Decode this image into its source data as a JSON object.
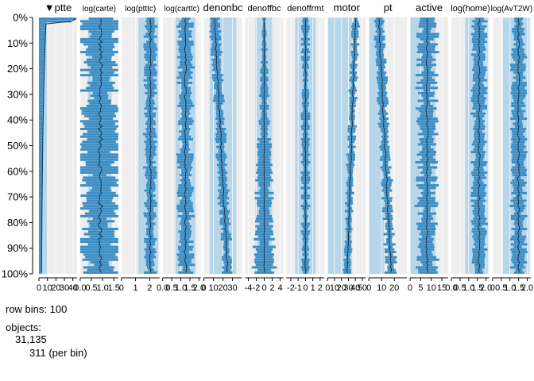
{
  "chart_data": {
    "type": "tableplot",
    "row_bins_text": "row bins: 100",
    "objects_label": "objects:",
    "objects_count": "31,135",
    "objects_per_bin": "311 (per bin)",
    "y_ticks": [
      "0%",
      "10%",
      "20%",
      "30%",
      "40%",
      "50%",
      "60%",
      "70%",
      "80%",
      "90%",
      "100%"
    ],
    "sort_indicator": "▼",
    "colors": {
      "bar": "#3f8fc4",
      "bar_dark": "#2a6f9e",
      "panel_bg": "#eeeeee",
      "band": "#b8d6ea",
      "median": "#1a3550",
      "grid": "#ffffff"
    },
    "columns": [
      {
        "name": "ptte",
        "sorted": true,
        "ticks": [
          {
            "v": 0,
            "l": "0"
          },
          {
            "v": 10,
            "l": "10"
          },
          {
            "v": 20,
            "l": "20"
          },
          {
            "v": 30,
            "l": "30"
          },
          {
            "v": 40,
            "l": "40"
          }
        ],
        "xlim": [
          0,
          45
        ],
        "profile": "sorted_desc",
        "band": [
          0,
          10
        ]
      },
      {
        "name": "log(carte)",
        "ticks": [
          {
            "v": 0,
            "l": "0.0"
          },
          {
            "v": 0.5,
            "l": "0.5"
          },
          {
            "v": 1.0,
            "l": "1.0"
          },
          {
            "v": 1.5,
            "l": "1.5"
          }
        ],
        "xlim": [
          0,
          1.7
        ],
        "profile": "flat_noisy",
        "mean": 0.9,
        "spread": 0.5,
        "band": [
          0.35,
          1.4
        ]
      },
      {
        "name": "log(ptttc)",
        "ticks": [
          {
            "v": 0,
            "l": "0"
          },
          {
            "v": 1,
            "l": "1"
          },
          {
            "v": 2,
            "l": "2"
          }
        ],
        "xlim": [
          0,
          2.7
        ],
        "profile": "flat",
        "mean": 2.05,
        "spread": 0.3,
        "band": [
          1.2,
          2.6
        ]
      },
      {
        "name": "log(carttc)",
        "ticks": [
          {
            "v": 0,
            "l": "0.0"
          },
          {
            "v": 0.5,
            "l": "0.5"
          },
          {
            "v": 1.0,
            "l": "1.0"
          },
          {
            "v": 1.5,
            "l": "1.5"
          },
          {
            "v": 2.0,
            "l": "2.0"
          }
        ],
        "xlim": [
          0,
          2.1
        ],
        "profile": "flat",
        "mean": 1.25,
        "spread": 0.3,
        "band": [
          0.7,
          1.8
        ]
      },
      {
        "name": "denonbc",
        "ticks": [
          {
            "v": 0,
            "l": "0"
          },
          {
            "v": 10,
            "l": "10"
          },
          {
            "v": 20,
            "l": "20"
          },
          {
            "v": 30,
            "l": "30"
          }
        ],
        "xlim": [
          0,
          40
        ],
        "profile": "rising",
        "mean": 20,
        "spread": 4,
        "band": [
          6,
          34
        ]
      },
      {
        "name": "denoffbc",
        "ticks": [
          {
            "v": -4,
            "l": "-4"
          },
          {
            "v": -2,
            "l": "-2"
          },
          {
            "v": 0,
            "l": "0"
          },
          {
            "v": 2,
            "l": "2"
          },
          {
            "v": 4,
            "l": "4"
          }
        ],
        "xlim": [
          -4.8,
          4.8
        ],
        "profile": "centered_grow",
        "mean": 0,
        "spread": 1,
        "band": [
          -2.2,
          2.2
        ]
      },
      {
        "name": "denoffrmt",
        "ticks": [
          {
            "v": -2,
            "l": "-2"
          },
          {
            "v": -1,
            "l": "-1"
          },
          {
            "v": 0,
            "l": "0"
          },
          {
            "v": 1,
            "l": "1"
          },
          {
            "v": 2,
            "l": "2"
          }
        ],
        "xlim": [
          -2.6,
          2.6
        ],
        "profile": "centered",
        "mean": 0,
        "spread": 0.5,
        "band": [
          -1.4,
          1.4
        ]
      },
      {
        "name": "motor",
        "ticks": [
          {
            "v": 0,
            "l": "0"
          },
          {
            "v": 10,
            "l": "10"
          },
          {
            "v": 20,
            "l": "20"
          },
          {
            "v": 30,
            "l": "30"
          },
          {
            "v": 40,
            "l": "40"
          },
          {
            "v": 50,
            "l": "50"
          }
        ],
        "xlim": [
          0,
          55
        ],
        "profile": "falling",
        "mean": 35,
        "spread": 4,
        "band": [
          0,
          35
        ]
      },
      {
        "name": "pt",
        "ticks": [
          {
            "v": 0,
            "l": "0"
          },
          {
            "v": 10,
            "l": "10"
          },
          {
            "v": 20,
            "l": "20"
          }
        ],
        "xlim": [
          0,
          30
        ],
        "profile": "rising",
        "mean": 14,
        "spread": 3,
        "band": [
          0,
          12
        ]
      },
      {
        "name": "active",
        "ticks": [
          {
            "v": 0,
            "l": "0"
          },
          {
            "v": 5,
            "l": "5"
          },
          {
            "v": 10,
            "l": "10"
          },
          {
            "v": 15,
            "l": "15"
          }
        ],
        "xlim": [
          0,
          18
        ],
        "profile": "flat_noisy",
        "mean": 8,
        "spread": 2.5,
        "band": [
          0,
          12
        ]
      },
      {
        "name": "log(home)",
        "ticks": [
          {
            "v": 0,
            "l": "0.0"
          },
          {
            "v": 0.5,
            "l": "0.5"
          },
          {
            "v": 1.0,
            "l": "1.0"
          },
          {
            "v": 1.5,
            "l": "1.5"
          },
          {
            "v": 2.0,
            "l": "2.0"
          }
        ],
        "xlim": [
          0,
          2.2
        ],
        "profile": "flat",
        "mean": 1.6,
        "spread": 0.3,
        "band": [
          0.8,
          2.1
        ]
      },
      {
        "name": "log(AvT2W)",
        "ticks": [
          {
            "v": 0,
            "l": "0"
          },
          {
            "v": 0.5,
            "l": "0.5"
          },
          {
            "v": 1.0,
            "l": "1.0"
          },
          {
            "v": 1.5,
            "l": "1.5"
          },
          {
            "v": 2.0,
            "l": "2.0"
          }
        ],
        "xlim": [
          0,
          2.2
        ],
        "profile": "flat",
        "mean": 1.5,
        "spread": 0.3,
        "band": [
          0.6,
          2.1
        ]
      }
    ]
  }
}
